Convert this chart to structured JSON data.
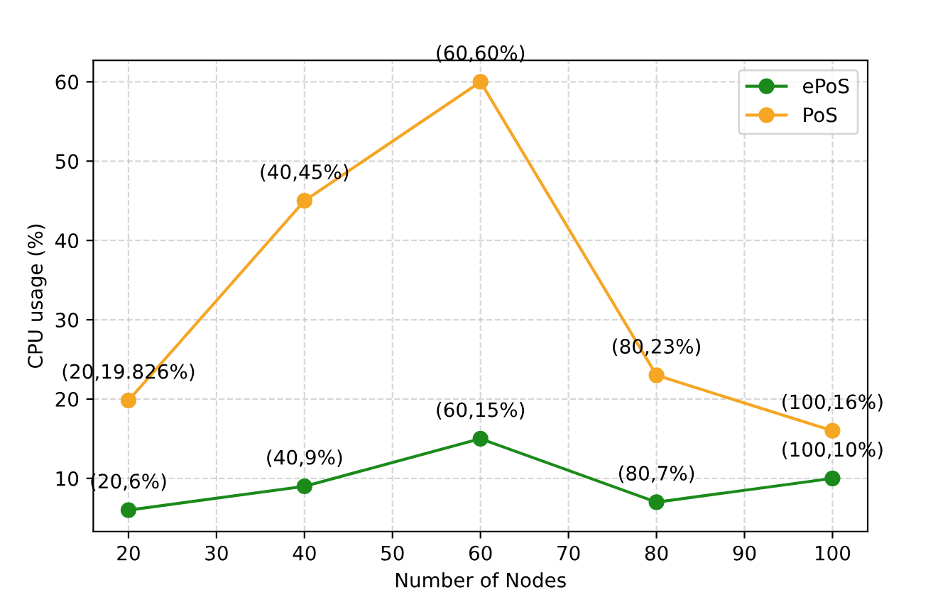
{
  "chart_data": {
    "type": "line",
    "xlabel": "Number of Nodes",
    "ylabel": "CPU usage (%)",
    "x": [
      20,
      40,
      60,
      80,
      100
    ],
    "series": [
      {
        "name": "ePoS",
        "color": "#1a8a1a",
        "values": [
          6,
          9,
          15,
          7,
          10
        ]
      },
      {
        "name": "PoS",
        "color": "#f5a623",
        "values": [
          19.826,
          45,
          60,
          23,
          16
        ]
      }
    ],
    "xlim": [
      16,
      104
    ],
    "ylim": [
      3.3,
      62.7
    ],
    "xticks": [
      20,
      30,
      40,
      50,
      60,
      70,
      80,
      90,
      100
    ],
    "yticks": [
      10,
      20,
      30,
      40,
      50,
      60
    ],
    "grid": true,
    "legend": "top right",
    "marker": "circle",
    "line_style": "solid",
    "annotations": [
      {
        "text": "(20,6%)",
        "x": 20,
        "y": 6
      },
      {
        "text": "(40,9%)",
        "x": 40,
        "y": 9
      },
      {
        "text": "(60,15%)",
        "x": 60,
        "y": 15
      },
      {
        "text": "(80,7%)",
        "x": 80,
        "y": 7
      },
      {
        "text": "(100,10%)",
        "x": 100,
        "y": 10
      },
      {
        "text": "(20,19.826%)",
        "x": 20,
        "y": 19.826
      },
      {
        "text": "(40,45%)",
        "x": 40,
        "y": 45
      },
      {
        "text": "(60,60%)",
        "x": 60,
        "y": 60
      },
      {
        "text": "(80,23%)",
        "x": 80,
        "y": 23
      },
      {
        "text": "(100,16%)",
        "x": 100,
        "y": 16
      }
    ]
  }
}
